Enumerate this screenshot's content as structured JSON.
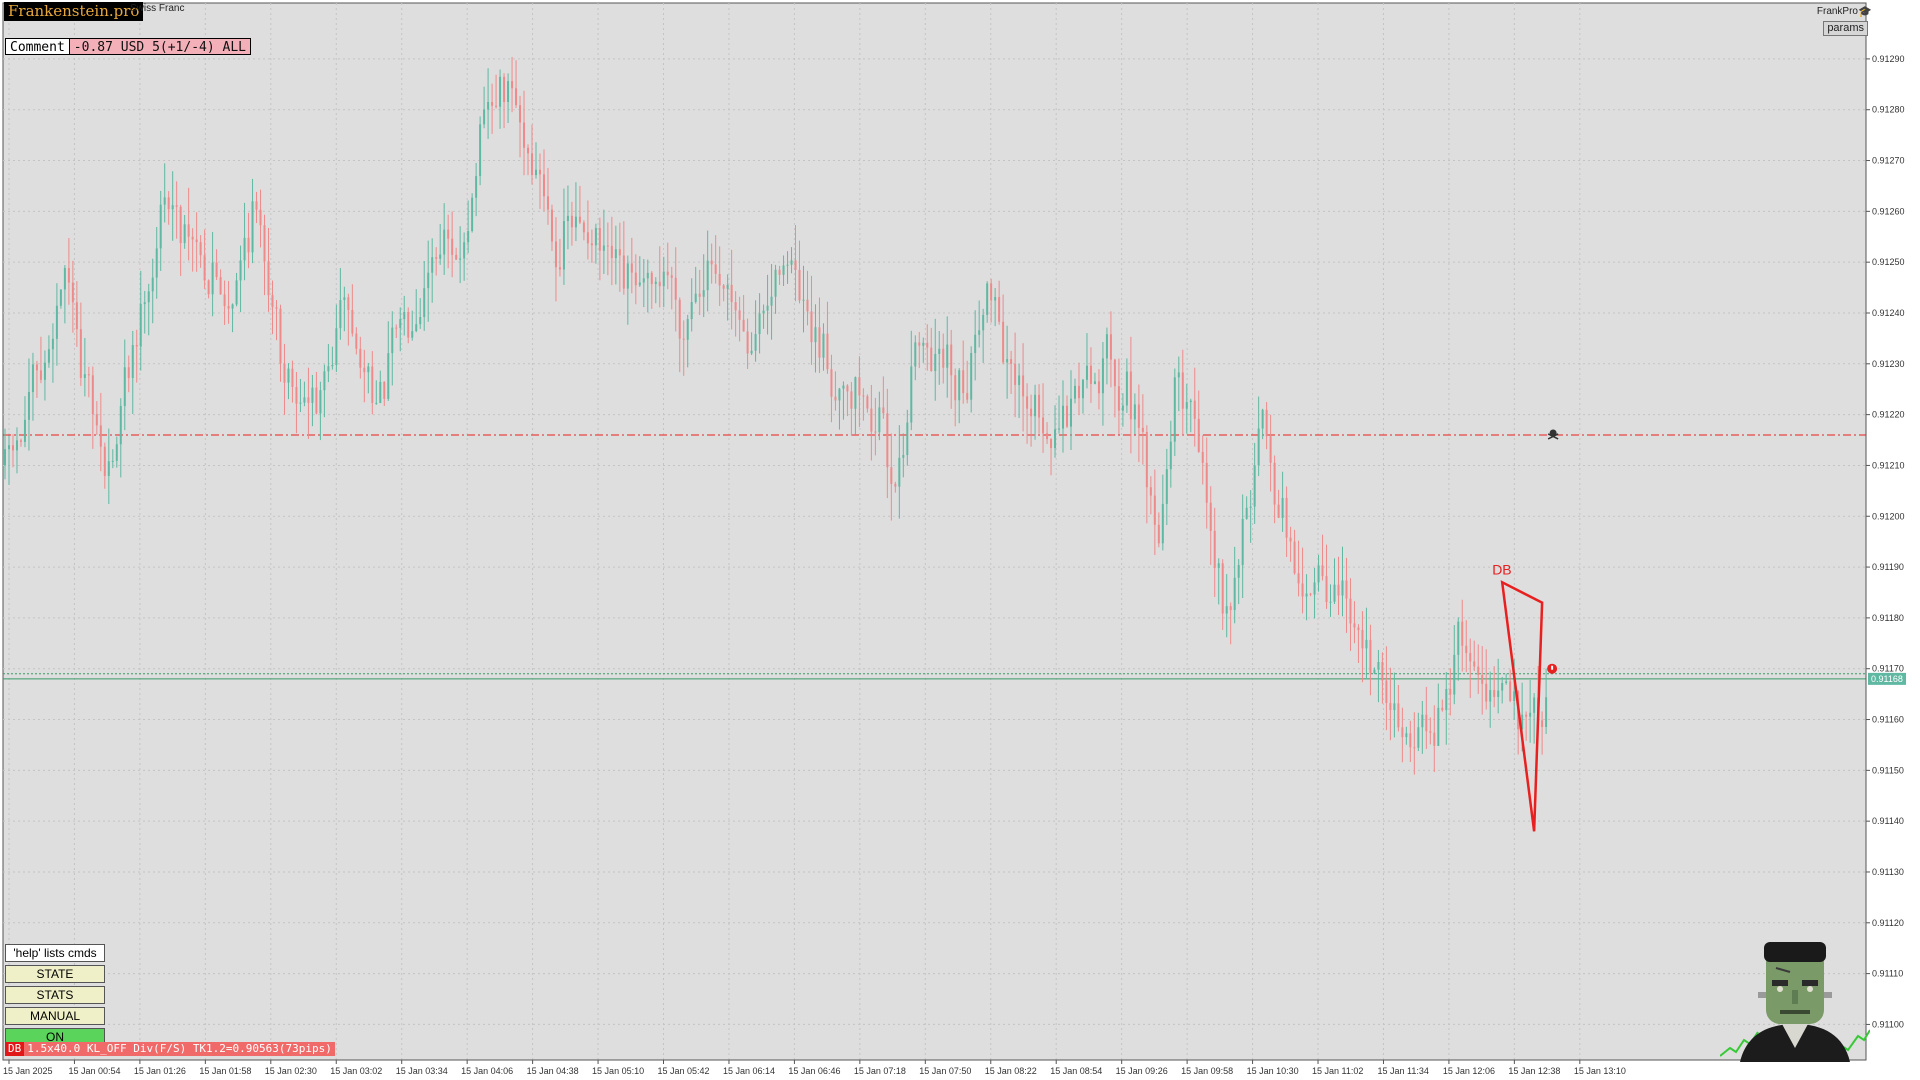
{
  "header": {
    "brand": "Frankenstein.pro",
    "symbol_title": "Swiss Franc",
    "frankpro_label": "FrankPro",
    "params_label": "params"
  },
  "comment": {
    "label": "Comment",
    "value": "-0.87 USD 5(+1/-4) ALL"
  },
  "commands": {
    "help": "'help' lists cmds",
    "buttons": [
      "STATE",
      "STATS",
      "MANUAL",
      "ON"
    ]
  },
  "status": {
    "tag": "DB",
    "text": "1.5x40.0 KL_OFF Div(F/S) TK1.2=0.90563(73pips)"
  },
  "colors": {
    "background": "#dedede",
    "grid": "#c4c4c4",
    "bull": "#5fb8a2",
    "bear": "#ef8a8a",
    "accent_red": "#e82020",
    "bid_line": "#3a9a6a",
    "price_tag": "#5fb8a2"
  },
  "icons": {
    "frankpro": "graduation-cap-icon",
    "level_marker": "skull-icon",
    "pattern_marker": "alarm-icon",
    "mascot": "frankenstein-avatar"
  },
  "chart_data": {
    "type": "candlestick",
    "y_ticks": [
      "0.91290",
      "0.91280",
      "0.91270",
      "0.91260",
      "0.91250",
      "0.91240",
      "0.91230",
      "0.91220",
      "0.91210",
      "0.91200",
      "0.91190",
      "0.91180",
      "0.91170",
      "0.91160",
      "0.91150",
      "0.91140",
      "0.91130",
      "0.91120",
      "0.91110",
      "0.91100"
    ],
    "x_ticks": [
      "15 Jan 2025",
      "15 Jan 00:54",
      "15 Jan 01:26",
      "15 Jan 01:58",
      "15 Jan 02:30",
      "15 Jan 03:02",
      "15 Jan 03:34",
      "15 Jan 04:06",
      "15 Jan 04:38",
      "15 Jan 05:10",
      "15 Jan 05:42",
      "15 Jan 06:14",
      "15 Jan 06:46",
      "15 Jan 07:18",
      "15 Jan 07:50",
      "15 Jan 08:22",
      "15 Jan 08:54",
      "15 Jan 09:26",
      "15 Jan 09:58",
      "15 Jan 10:30",
      "15 Jan 11:02",
      "15 Jan 11:34",
      "15 Jan 12:06",
      "15 Jan 12:38",
      "15 Jan 13:10"
    ],
    "ylim": [
      0.91093,
      0.91301
    ],
    "current_price": "0.91168",
    "levels": [
      {
        "name": "resistance",
        "price": 0.91216,
        "style": "dash-dot"
      },
      {
        "name": "bid",
        "price": 0.91168,
        "style": "solid"
      },
      {
        "name": "ask",
        "price": 0.91169,
        "style": "dotted"
      }
    ],
    "pattern": {
      "label": "DB",
      "points": [
        {
          "bar": 375,
          "price": 0.91187
        },
        {
          "bar": 383,
          "price": 0.91138
        },
        {
          "bar": 385,
          "price": 0.91183
        }
      ]
    },
    "path": [
      [
        0,
        0.9121
      ],
      [
        10,
        0.91231
      ],
      [
        15,
        0.91249
      ],
      [
        20,
        0.91223
      ],
      [
        25,
        0.91205
      ],
      [
        32,
        0.91236
      ],
      [
        40,
        0.91263
      ],
      [
        47,
        0.91255
      ],
      [
        55,
        0.91241
      ],
      [
        62,
        0.91263
      ],
      [
        70,
        0.91226
      ],
      [
        78,
        0.91221
      ],
      [
        85,
        0.91243
      ],
      [
        92,
        0.91222
      ],
      [
        100,
        0.9124
      ],
      [
        108,
        0.91256
      ],
      [
        113,
        0.91249
      ],
      [
        120,
        0.91278
      ],
      [
        126,
        0.91282
      ],
      [
        132,
        0.9127
      ],
      [
        138,
        0.91253
      ],
      [
        145,
        0.91257
      ],
      [
        152,
        0.91247
      ],
      [
        160,
        0.91242
      ],
      [
        166,
        0.91248
      ],
      [
        170,
        0.91236
      ],
      [
        175,
        0.91252
      ],
      [
        182,
        0.91237
      ],
      [
        188,
        0.91234
      ],
      [
        195,
        0.91256
      ],
      [
        200,
        0.91235
      ],
      [
        208,
        0.91227
      ],
      [
        215,
        0.91223
      ],
      [
        222,
        0.91209
      ],
      [
        228,
        0.91233
      ],
      [
        235,
        0.91232
      ],
      [
        240,
        0.91228
      ],
      [
        246,
        0.91248
      ],
      [
        252,
        0.91223
      ],
      [
        258,
        0.91221
      ],
      [
        263,
        0.91211
      ],
      [
        268,
        0.91227
      ],
      [
        275,
        0.91231
      ],
      [
        282,
        0.91223
      ],
      [
        288,
        0.91194
      ],
      [
        293,
        0.91232
      ],
      [
        298,
        0.91215
      ],
      [
        305,
        0.91181
      ],
      [
        310,
        0.91202
      ],
      [
        315,
        0.91215
      ],
      [
        320,
        0.91196
      ],
      [
        325,
        0.91187
      ],
      [
        330,
        0.91184
      ],
      [
        335,
        0.91184
      ],
      [
        340,
        0.9117
      ],
      [
        346,
        0.91165
      ],
      [
        352,
        0.91156
      ],
      [
        358,
        0.91158
      ],
      [
        364,
        0.9118
      ],
      [
        370,
        0.91167
      ],
      [
        376,
        0.91163
      ],
      [
        380,
        0.9116
      ],
      [
        386,
        0.91167
      ]
    ],
    "noise": 6e-05
  }
}
